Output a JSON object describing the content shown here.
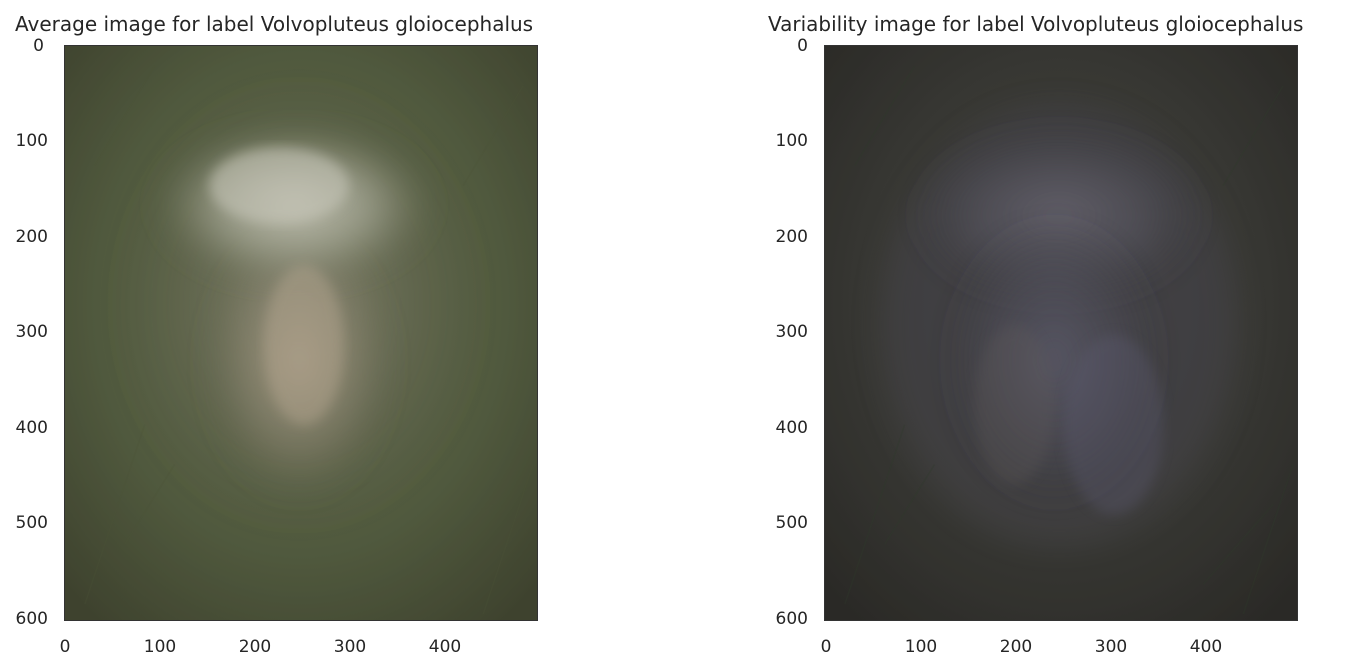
{
  "panels": [
    {
      "title": "Average image for label Volvopluteus gloiocephalus",
      "image": "average-mushroom-image",
      "colors": {
        "background": "#566043",
        "dark": "#3f432f",
        "cap": "#b9b9a8",
        "stem": "#a59a86"
      }
    },
    {
      "title": "Variability image for label Volvopluteus gloiocephalus",
      "image": "variability-mushroom-image",
      "colors": {
        "background": "#3a3a35",
        "dark": "#2b2a26",
        "cap": "#5f5c66",
        "stem": "#5a5865"
      }
    }
  ],
  "axes": {
    "y_ticks": [
      "0",
      "100",
      "200",
      "300",
      "400",
      "500",
      "600"
    ],
    "x_ticks": [
      "0",
      "100",
      "200",
      "300",
      "400"
    ],
    "xlim": [
      0,
      500
    ],
    "ylim": [
      600,
      0
    ]
  }
}
